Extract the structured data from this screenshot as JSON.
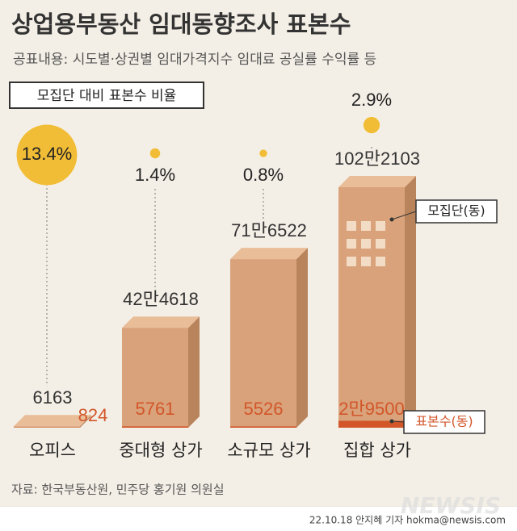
{
  "chart_data": {
    "type": "bar3d",
    "title": "상업용부동산 임대동향조사 표본수",
    "subtitle": "공표내용: 시도별·상권별 임대가격지수 임대료 공실률 수익률 등",
    "ratio_title": "모집단 대비 표본수 비율",
    "categories": [
      "오피스",
      "중대형 상가",
      "소규모 상가",
      "집합 상가"
    ],
    "series": [
      {
        "name": "모집단(동)",
        "color": "#d9a27a",
        "values": [
          6163,
          424618,
          716522,
          1022103
        ],
        "value_labels": [
          "6163",
          "42만4618",
          "71만6522",
          "102만2103"
        ]
      },
      {
        "name": "표본수(동)",
        "color": "#d2562a",
        "values": [
          824,
          5761,
          5526,
          29500
        ],
        "value_labels": [
          "824",
          "5761",
          "5526",
          "2만9500"
        ]
      }
    ],
    "ratio": {
      "color": "#f2bd36",
      "values": [
        13.4,
        1.4,
        0.8,
        2.9
      ],
      "value_labels": [
        "13.4%",
        "1.4%",
        "0.8%",
        "2.9%"
      ]
    },
    "source": "자료: 한국부동산원, 민주당 홍기원 의원실",
    "credit": "22.10.18 안지혜 기자 hokma@newsis.com",
    "watermark": "NEWSIS"
  }
}
